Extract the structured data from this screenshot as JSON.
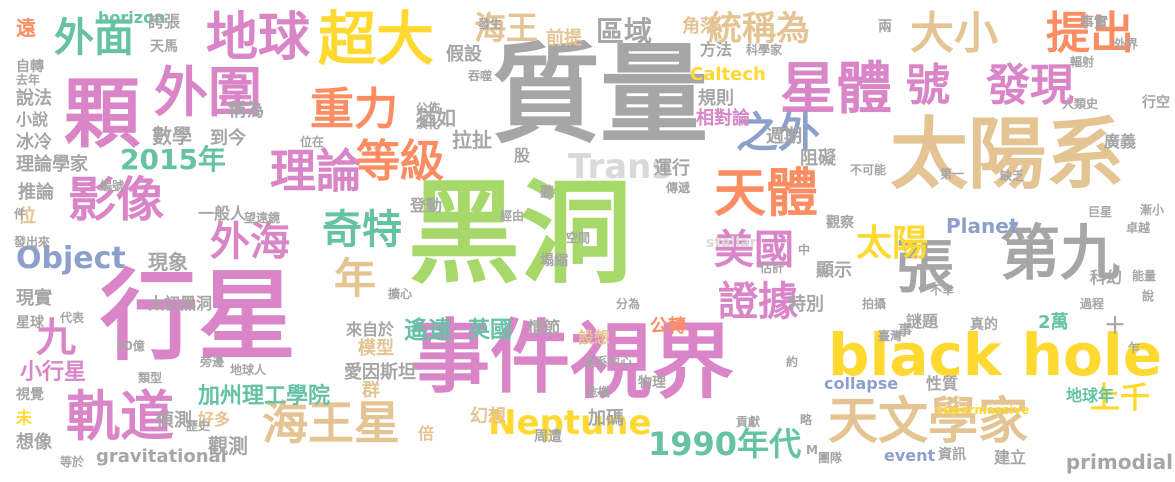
{
  "palette": {
    "gray": "#a6a6a6",
    "pink": "#d985c8",
    "green": "#a6d96a",
    "gold": "#ffd92f",
    "tan": "#e5c494",
    "teal": "#66c2a5",
    "orange": "#fc8d62",
    "blue": "#8da0cb"
  },
  "words": [
    "黑洞",
    "行星",
    "質量",
    "事件",
    "視界",
    "太陽系",
    "black hole",
    "顆",
    "外圍",
    "超大",
    "地球",
    "天文學家",
    "軌道",
    "第九",
    "海王星",
    "理論",
    "影像",
    "天體",
    "星體",
    "發現",
    "重力",
    "等級",
    "提出",
    "大小",
    "外面",
    "奇特",
    "外海",
    "美國",
    "證據",
    "張",
    "Neptune",
    "1990年代",
    "Object",
    "Trans",
    "2015年",
    "太陽",
    "之外",
    "號",
    "統稱為",
    "海王",
    "區域",
    "年",
    "九",
    "加州理工學院",
    "上千",
    "遙遠",
    "英國",
    "小行星",
    "Caltech",
    "Planet",
    "primodial",
    "gravitational",
    "collapse",
    "supermassive",
    "stellar",
    "event",
    "horizon",
    "現象",
    "數學",
    "到今",
    "稱為",
    "猶如",
    "拉扯",
    "假設",
    "前提",
    "角落",
    "方法",
    "規則",
    "相對論",
    "運行",
    "週期",
    "阻礙",
    "廣義",
    "觀察",
    "科幻",
    "謎題",
    "2萬",
    "公轉",
    "特別",
    "顯示",
    "設想",
    "情節",
    "模型",
    "愛因斯坦",
    "太初黑洞",
    "偵測",
    "好多",
    "觀測",
    "幻想",
    "加碼",
    "倍",
    "群",
    "來自於",
    "登動",
    "一般人",
    "現實",
    "推論",
    "位",
    "冰冷",
    "說法",
    "遠",
    "自轉",
    "天馬",
    "誇張",
    "理論學家",
    "事實",
    "外界",
    "輻射",
    "人類史",
    "行空",
    "第一",
    "巨星",
    "卓越",
    "能量",
    "過程",
    "資訊",
    "建立",
    "團隊",
    "略",
    "貢獻",
    "物理",
    "危機",
    "周遭",
    "聽",
    "經由",
    "空間",
    "塌縮",
    "分為",
    "股",
    "傳遞",
    "不可能",
    "估計",
    "不幸",
    "拍攝",
    "臺灣",
    "星系中心",
    "地球人",
    "旁邊",
    "類型",
    "歷史",
    "等於",
    "想像",
    "視覺",
    "未",
    "星球",
    "代表",
    "發出來",
    "件",
    "編號",
    "望遠鏡",
    "位在",
    "公佈",
    "演化",
    "吞噬",
    "發生",
    "科學家",
    "去年",
    "兩",
    "事",
    "地球年",
    "真的",
    "十",
    "乍",
    "漸小",
    "說",
    "性質",
    "M",
    "約",
    "中",
    "50億",
    "擴心",
    "小說",
    "缺乏"
  ]
}
